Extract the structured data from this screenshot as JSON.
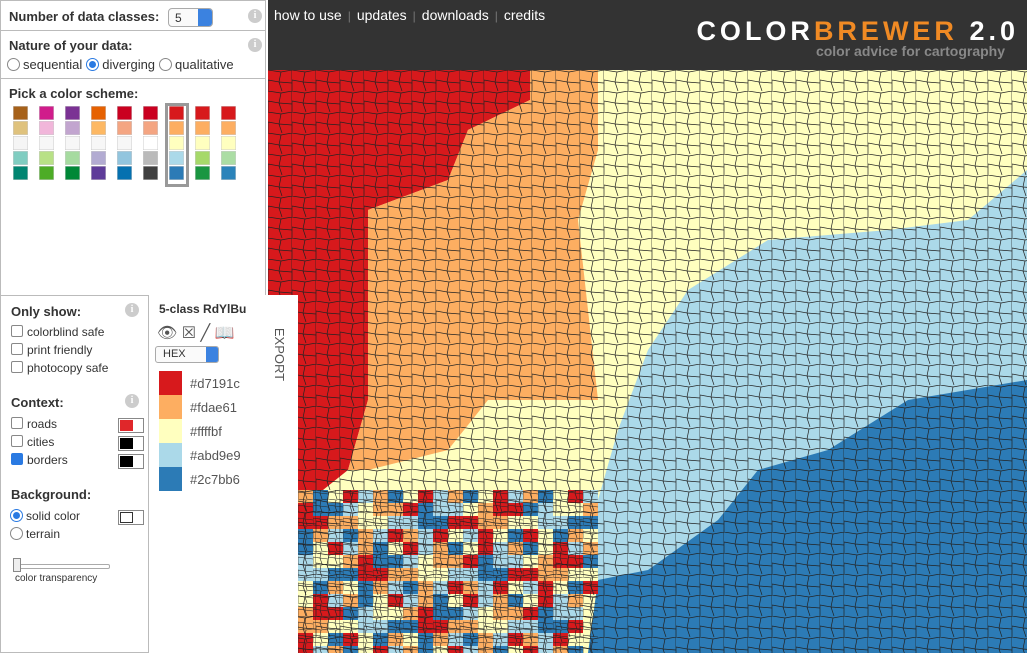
{
  "controls": {
    "num_classes_label": "Number of data classes:",
    "num_classes_value": "5",
    "nature_label": "Nature of your data:",
    "nature_options": [
      "sequential",
      "diverging",
      "qualitative"
    ],
    "nature_selected": 1,
    "scheme_label": "Pick a color scheme:",
    "schemes": [
      [
        "#a6611a",
        "#dfc27d",
        "#f5f5f5",
        "#80cdc1",
        "#018571"
      ],
      [
        "#d01c8b",
        "#f1b6da",
        "#f7f7f7",
        "#b8e186",
        "#4dac26"
      ],
      [
        "#7b3294",
        "#c2a5cf",
        "#f7f7f7",
        "#a6dba0",
        "#008837"
      ],
      [
        "#e66101",
        "#fdb863",
        "#f7f7f7",
        "#b2abd2",
        "#5e3c99"
      ],
      [
        "#ca0020",
        "#f4a582",
        "#f7f7f7",
        "#92c5de",
        "#0571b0"
      ],
      [
        "#ca0020",
        "#f4a582",
        "#ffffff",
        "#bababa",
        "#404040"
      ],
      [
        "#d7191c",
        "#fdae61",
        "#ffffbf",
        "#abd9e9",
        "#2c7bb6"
      ],
      [
        "#d7191c",
        "#fdae61",
        "#ffffbf",
        "#a6d96a",
        "#1a9641"
      ],
      [
        "#d7191c",
        "#fdae61",
        "#ffffbf",
        "#abdda4",
        "#2b83ba"
      ]
    ],
    "selected_scheme": 6
  },
  "nav": [
    "how to use",
    "updates",
    "downloads",
    "credits"
  ],
  "brand": {
    "color": "COLOR",
    "brewer": "BREWER",
    "version": "2.0",
    "tagline": "color advice for cartography"
  },
  "only_show": {
    "label": "Only show:",
    "options": [
      "colorblind safe",
      "print friendly",
      "photocopy safe"
    ]
  },
  "context": {
    "label": "Context:",
    "options": [
      {
        "label": "roads",
        "checked": false,
        "color": "#e0272a"
      },
      {
        "label": "cities",
        "checked": false,
        "color": "#000000"
      },
      {
        "label": "borders",
        "checked": true,
        "color": "#000000"
      }
    ]
  },
  "background": {
    "label": "Background:",
    "options": [
      "solid color",
      "terrain"
    ],
    "selected": 0,
    "color": "#ffffff",
    "transparency_label": "color transparency"
  },
  "palette": {
    "title": "5-class RdYlBu",
    "format": "HEX",
    "export": "EXPORT",
    "colors": [
      "#d7191c",
      "#fdae61",
      "#ffffbf",
      "#abd9e9",
      "#2c7bb6"
    ]
  }
}
